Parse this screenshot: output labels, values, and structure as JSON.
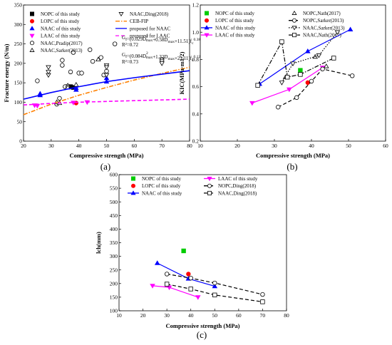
{
  "chart_data": [
    {
      "type": "scatter",
      "panel_label": "(a)",
      "xlabel": "Compressive strength (MPa)",
      "ylabel": "Fracture energy (N/m)",
      "xlim": [
        20,
        80
      ],
      "ylim": [
        0,
        350
      ],
      "xticks": [
        "20",
        "30",
        "40",
        "50",
        "60",
        "70",
        "80"
      ],
      "yticks": [
        "0",
        "50",
        "100",
        "150",
        "200",
        "250",
        "300",
        "350"
      ],
      "legend_position": "top-left",
      "series": [
        {
          "name": "NOPC of this study",
          "marker": "square-filled",
          "color": "#000000",
          "points": [
            [
              36,
              140
            ],
            [
              37,
              140
            ],
            [
              38,
              138
            ]
          ]
        },
        {
          "name": "LOPC of this study",
          "marker": "circle-filled",
          "color": "#ff0000",
          "points": [
            [
              39,
              98
            ]
          ]
        },
        {
          "name": "NAAC of this study",
          "marker": "triangle-filled",
          "color": "#0000ff",
          "points": [
            [
              26,
              122
            ],
            [
              26,
              118
            ],
            [
              39,
              137
            ],
            [
              39,
              132
            ],
            [
              50,
              153
            ],
            [
              50,
              162
            ]
          ]
        },
        {
          "name": "LAAC of this study",
          "marker": "triangle-down-filled",
          "color": "#ff00ff",
          "points": [
            [
              24,
              92
            ],
            [
              25,
              91
            ],
            [
              38,
              99
            ],
            [
              43,
              100
            ]
          ]
        },
        {
          "name": "NAAC,Pradip(2017)",
          "marker": "circle-open",
          "color": "#000000",
          "points": [
            [
              25,
              155
            ],
            [
              32,
              95
            ],
            [
              33,
              110
            ],
            [
              34,
              195
            ],
            [
              34,
              208
            ],
            [
              35,
              140
            ],
            [
              37,
              178
            ],
            [
              38,
              228
            ],
            [
              40,
              175
            ],
            [
              41,
              175
            ],
            [
              44,
              235
            ],
            [
              45,
              205
            ],
            [
              48,
              215
            ],
            [
              49,
              170
            ],
            [
              50,
              180
            ],
            [
              53,
              250
            ]
          ]
        },
        {
          "name": "NAAC,Sarker(2013)",
          "marker": "triangle-open",
          "color": "#000000",
          "points": [
            [
              32,
              100
            ],
            [
              33,
              98
            ],
            [
              36,
              143
            ],
            [
              36,
              138
            ],
            [
              39,
              145
            ],
            [
              47,
              210
            ]
          ]
        },
        {
          "name": "NAAC,Ding(2018)",
          "marker": "triangle-down-open",
          "color": "#000000",
          "points": [
            [
              29,
              170
            ],
            [
              29,
              178
            ],
            [
              29,
              190
            ],
            [
              50,
              195
            ],
            [
              50,
              190
            ],
            [
              50,
              170
            ],
            [
              70,
              210
            ],
            [
              70,
              205
            ],
            [
              70,
              200
            ]
          ]
        },
        {
          "name": "CEB-FIP",
          "line": "dashdot",
          "color": "#ff8000",
          "x": [
            20,
            30,
            40,
            50,
            60,
            70,
            80
          ],
          "y": [
            68,
            95,
            118,
            138,
            157,
            174,
            190
          ]
        },
        {
          "name": "proposed for NAAC",
          "line": "solid",
          "color": "#0000ff",
          "x": [
            20,
            30,
            40,
            50,
            60,
            70,
            80
          ],
          "y": [
            108,
            125,
            140,
            153,
            163,
            172,
            181
          ]
        },
        {
          "name": "proposed for LAAC",
          "line": "dashed",
          "color": "#ff00ff",
          "x": [
            20,
            30,
            40,
            50,
            60,
            70,
            80
          ],
          "y": [
            93,
            97,
            100,
            102,
            104,
            106,
            108
          ]
        }
      ],
      "equations": [
        {
          "lines": [
            "G",
            "f",
            "=(0.029D",
            "2",
            "max",
            "+0.58D",
            "max",
            "+11.51)f",
            "c",
            "0.38"
          ],
          "text": "Gf=(0.029D2max+0.58Dmax+11.51)fc0.38",
          "r2": "R²=0.72"
        },
        {
          "text": "Gf=(0.084D2max+1.32Dmax+21.11)fc0.12",
          "r2": "R²=0.73"
        }
      ]
    },
    {
      "type": "line",
      "panel_label": "(b)",
      "xlabel": "Compressive strength (MPa)",
      "ylabel": "KIC(MPa·m1/2)",
      "xlim": [
        10,
        60
      ],
      "ylim": [
        0.2,
        1.2
      ],
      "xticks": [
        "10",
        "20",
        "30",
        "40",
        "50",
        "60"
      ],
      "yticks": [
        "0.2",
        "0.4",
        "0.6",
        "0.8",
        "1.0",
        "1.2"
      ],
      "legend_position": "top-left",
      "series": [
        {
          "name": "NOPC of this study",
          "marker": "square-filled",
          "color": "#00cc00",
          "line": "none",
          "points": [
            [
              37,
              0.72
            ]
          ]
        },
        {
          "name": "LOPC of this study",
          "marker": "circle-filled",
          "color": "#ff0000",
          "line": "none",
          "points": [
            [
              39,
              0.63
            ]
          ]
        },
        {
          "name": "NAAC of this study",
          "marker": "triangle-filled",
          "color": "#0000ff",
          "line": "solid",
          "points": [
            [
              26,
              0.62
            ],
            [
              39,
              0.86
            ],
            [
              50.5,
              1.02
            ]
          ]
        },
        {
          "name": "LAAC of this study",
          "marker": "triangle-down-filled",
          "color": "#ff00ff",
          "line": "solid",
          "points": [
            [
              24,
              0.48
            ],
            [
              34,
              0.58
            ],
            [
              43,
              0.74
            ]
          ]
        },
        {
          "name": "NOPC,Nath(2017)",
          "marker": "triangle-open",
          "color": "#000000",
          "line": "none",
          "points": [
            [
              33,
              0.67
            ],
            [
              41,
              0.82
            ],
            [
              44,
              0.75
            ]
          ]
        },
        {
          "name": "NOPC,Sarker(2013)",
          "marker": "circle-open",
          "color": "#000000",
          "line": "dashed",
          "points": [
            [
              31,
              0.45
            ],
            [
              36,
              0.52
            ],
            [
              40,
              0.64
            ],
            [
              43,
              0.73
            ],
            [
              51,
              0.68
            ]
          ]
        },
        {
          "name": "NAAC,Sarker(2013)",
          "marker": "triangle-down-open",
          "color": "#000000",
          "line": "dotted",
          "points": [
            [
              32,
              0.63
            ],
            [
              35,
              0.77
            ],
            [
              42,
              0.83
            ],
            [
              47,
              1.0
            ]
          ]
        },
        {
          "name": "NAAC,Nath(2017)",
          "marker": "square-open",
          "color": "#000000",
          "line": "dashdot",
          "points": [
            [
              25.5,
              0.61
            ],
            [
              32,
              0.93
            ],
            [
              33.5,
              0.67
            ],
            [
              37,
              0.69
            ],
            [
              46,
              0.81
            ]
          ]
        }
      ]
    },
    {
      "type": "line",
      "panel_label": "(c)",
      "xlabel": "Compressive strength (MPa)",
      "ylabel": "lch(mm)",
      "xlim": [
        10,
        80
      ],
      "ylim": [
        100,
        600
      ],
      "xticks": [
        "10",
        "20",
        "30",
        "40",
        "50",
        "60",
        "70",
        "80"
      ],
      "yticks": [
        "100",
        "150",
        "200",
        "250",
        "300",
        "350",
        "400",
        "450",
        "500",
        "550",
        "600"
      ],
      "legend_position": "top",
      "series": [
        {
          "name": "NOPC of this study",
          "marker": "square-filled",
          "color": "#00cc00",
          "line": "none",
          "points": [
            [
              37,
              320
            ]
          ]
        },
        {
          "name": "LOPC of this study",
          "marker": "circle-filled",
          "color": "#ff0000",
          "line": "none",
          "points": [
            [
              39,
              235
            ]
          ]
        },
        {
          "name": "NAAC of this study",
          "marker": "triangle-filled",
          "color": "#0000ff",
          "line": "solid",
          "points": [
            [
              26,
              275
            ],
            [
              39,
              218
            ],
            [
              50,
              190
            ]
          ]
        },
        {
          "name": "LAAC of this study",
          "marker": "triangle-down-filled",
          "color": "#ff00ff",
          "line": "solid",
          "points": [
            [
              24,
              192
            ],
            [
              31,
              186
            ],
            [
              43,
              150
            ]
          ]
        },
        {
          "name": "NOPC,Ding(2018)",
          "marker": "circle-open",
          "color": "#000000",
          "line": "dashed",
          "points": [
            [
              30,
              235
            ],
            [
              40,
              220
            ],
            [
              50,
              202
            ],
            [
              70,
              160
            ]
          ]
        },
        {
          "name": "NAAC,Ding(2018)",
          "marker": "square-open",
          "color": "#000000",
          "line": "dashed",
          "points": [
            [
              30,
              198
            ],
            [
              40,
              180
            ],
            [
              50,
              158
            ],
            [
              70,
              133
            ]
          ]
        }
      ]
    }
  ]
}
